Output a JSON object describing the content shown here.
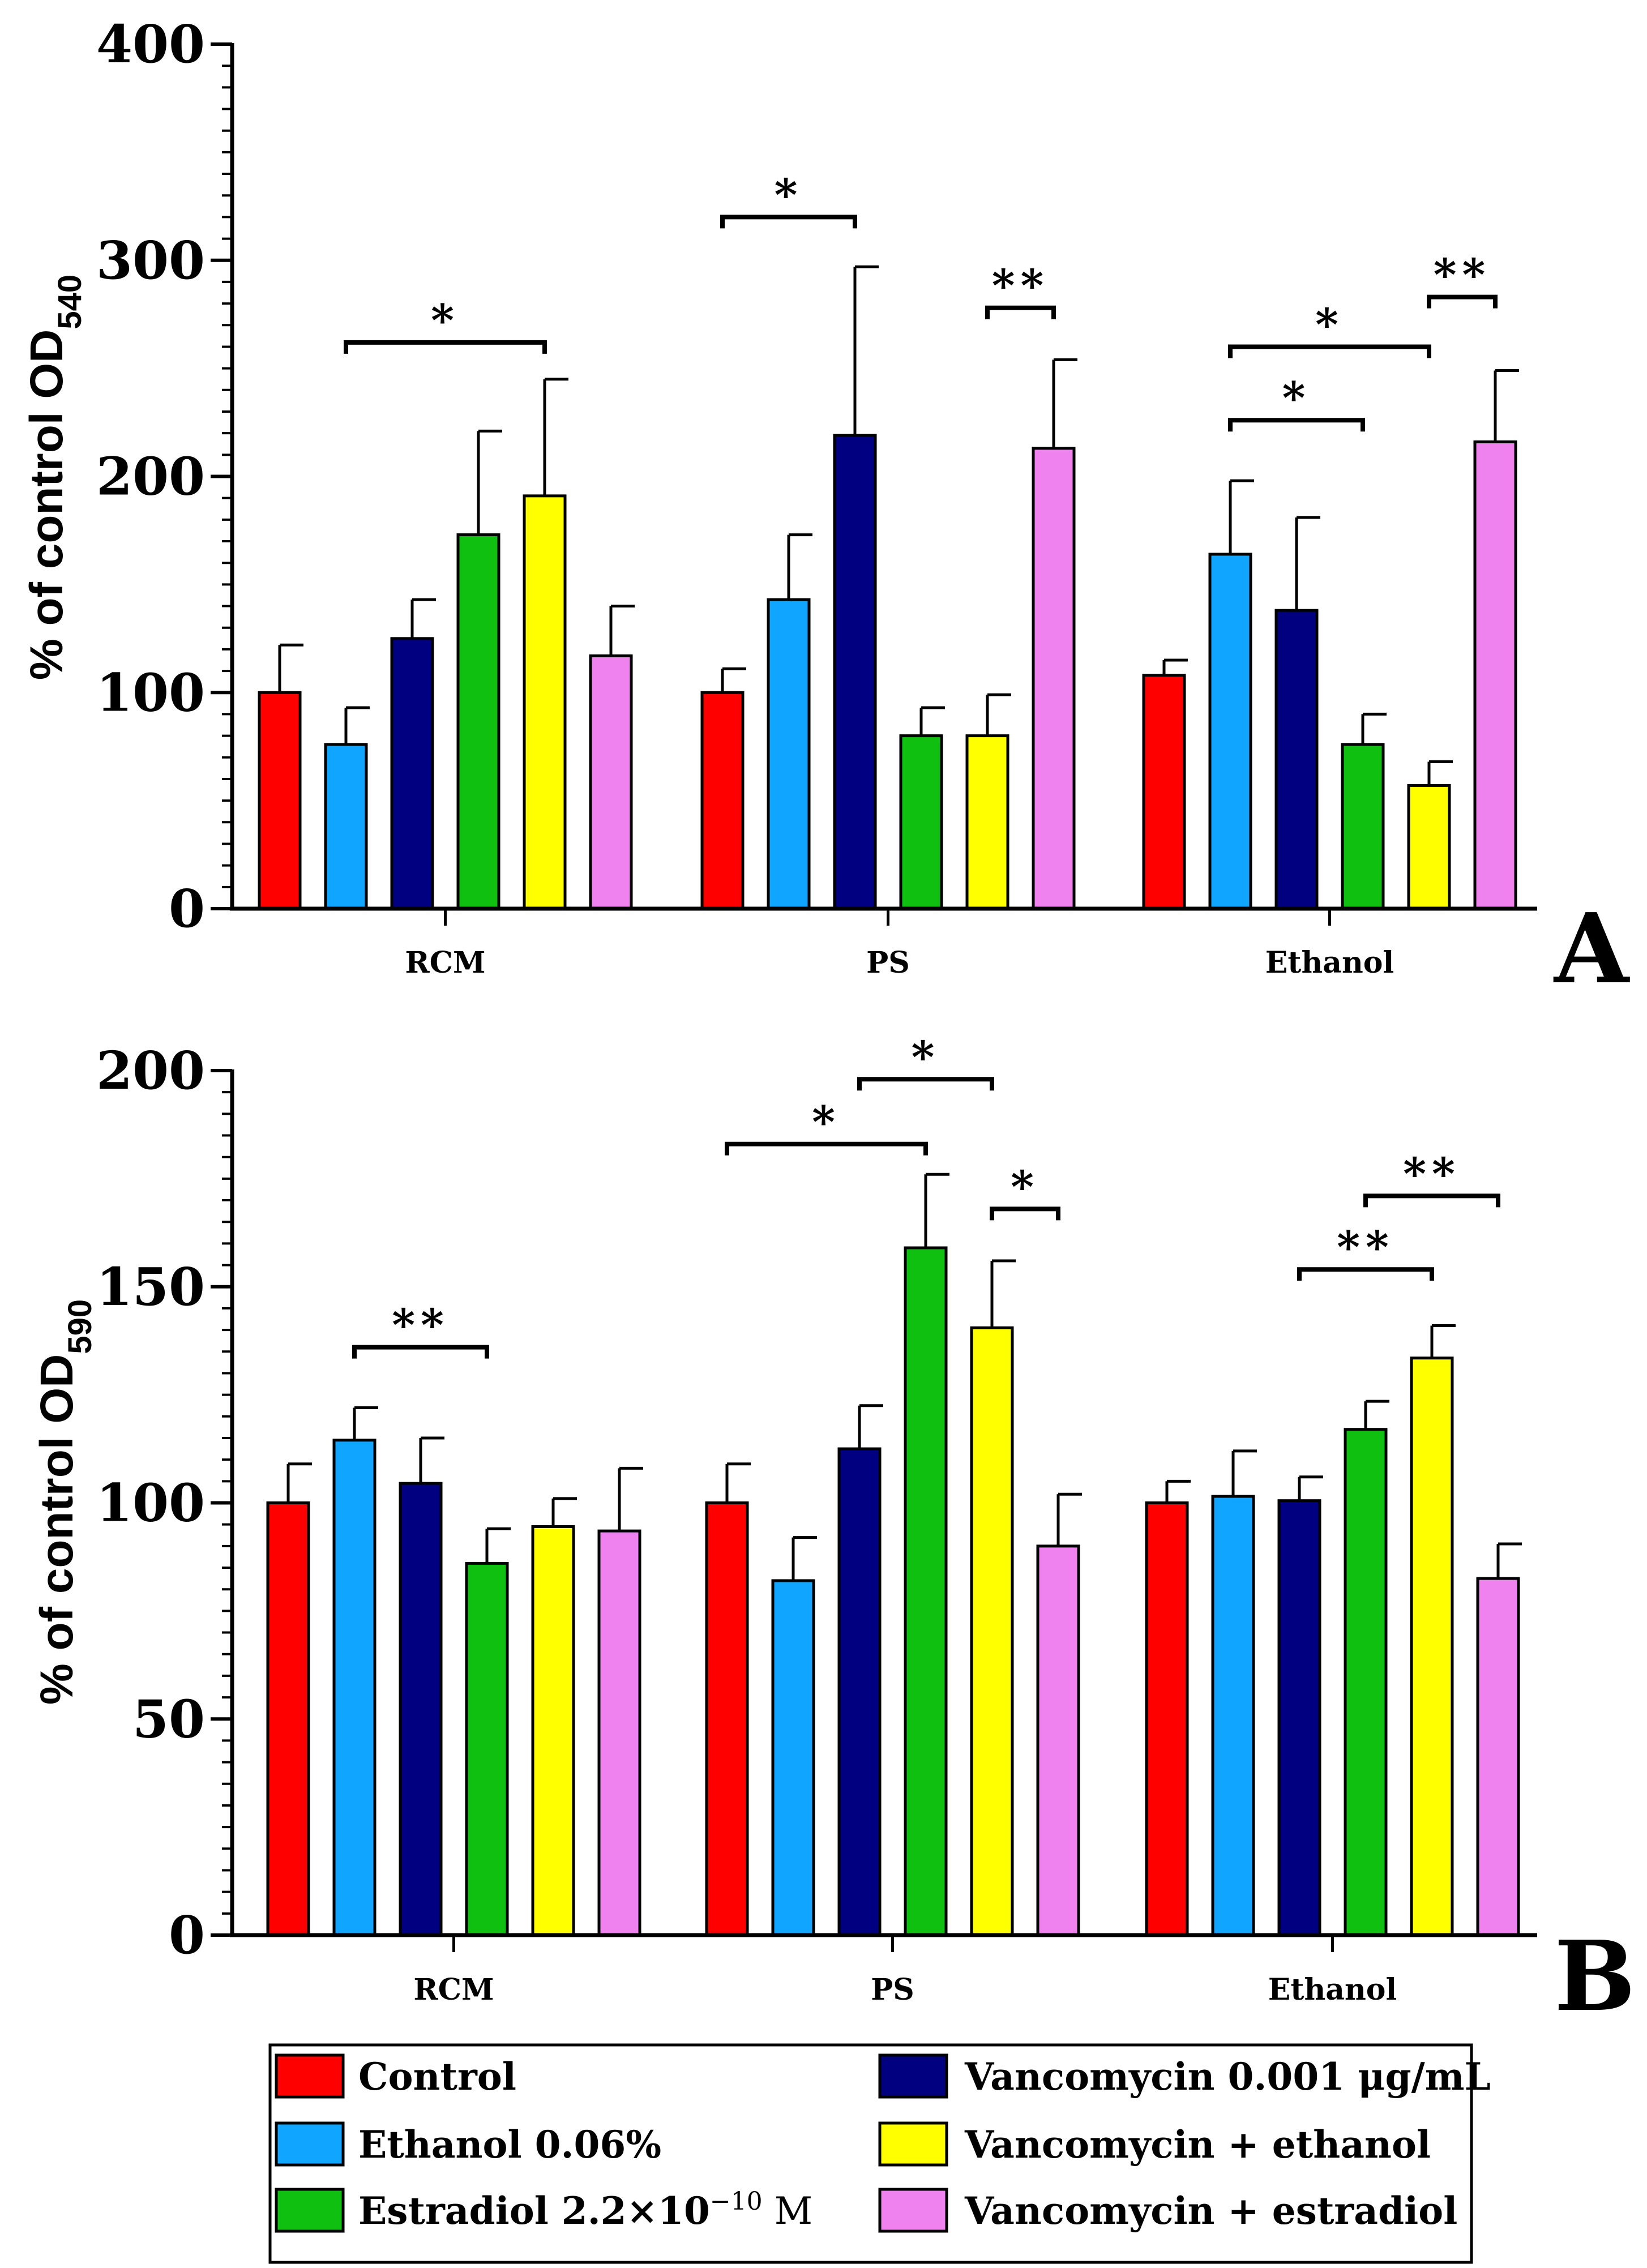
{
  "chart_data": [
    {
      "type": "bar",
      "panel_label": "A",
      "ylabel": {
        "main": "% of control OD",
        "sub": "540"
      },
      "ylim": [
        0,
        400
      ],
      "yticks": [
        0,
        100,
        200,
        300,
        400
      ],
      "categories": [
        "RCM",
        "PS",
        "Ethanol"
      ],
      "series": [
        {
          "name": "Control",
          "values": [
            100,
            100,
            108
          ],
          "errors": [
            22,
            11,
            7
          ],
          "color": "#ff0000"
        },
        {
          "name": "Ethanol 0.06%",
          "values": [
            76,
            143,
            164
          ],
          "errors": [
            17,
            30,
            34
          ],
          "color": "#10a5ff"
        },
        {
          "name": "Vancomycin 0.001 μg/mL",
          "values": [
            125,
            219,
            138
          ],
          "errors": [
            18,
            78,
            43
          ],
          "color": "#000080"
        },
        {
          "name": "Estradiol 2.2×10−10 M",
          "values": [
            173,
            80,
            76
          ],
          "errors": [
            48,
            13,
            14
          ],
          "color": "#10c010"
        },
        {
          "name": "Vancomycin + ethanol",
          "values": [
            191,
            80,
            57
          ],
          "errors": [
            54,
            19,
            11
          ],
          "color": "#ffff00"
        },
        {
          "name": "Vancomycin + estradiol",
          "values": [
            117,
            213,
            216
          ],
          "errors": [
            23,
            41,
            33
          ],
          "color": "#ef82ef"
        }
      ],
      "significance": [
        {
          "group": 0,
          "from": 1,
          "to": 4,
          "level": 262,
          "label": "*"
        },
        {
          "group": 1,
          "from": 0,
          "to": 2,
          "level": 320,
          "label": "*"
        },
        {
          "group": 1,
          "from": 4,
          "to": 5,
          "level": 278,
          "label": "**"
        },
        {
          "group": 2,
          "from": 1,
          "to": 4,
          "level": 260,
          "label": "*"
        },
        {
          "group": 2,
          "from": 1,
          "to": 3,
          "level": 226,
          "label": "*"
        },
        {
          "group": 2,
          "from": 4,
          "to": 5,
          "level": 283,
          "label": "**"
        }
      ]
    },
    {
      "type": "bar",
      "panel_label": "B",
      "ylabel": {
        "main": "% of control OD",
        "sub": "590"
      },
      "ylim": [
        0,
        200
      ],
      "yticks": [
        0,
        50,
        100,
        150,
        200
      ],
      "categories": [
        "RCM",
        "PS",
        "Ethanol"
      ],
      "series": [
        {
          "name": "Control",
          "values": [
            100,
            100,
            100
          ],
          "errors": [
            9,
            9,
            5
          ],
          "color": "#ff0000"
        },
        {
          "name": "Ethanol 0.06%",
          "values": [
            114.5,
            82,
            101.5
          ],
          "errors": [
            7.5,
            10,
            10.5
          ],
          "color": "#10a5ff"
        },
        {
          "name": "Vancomycin 0.001 μg/mL",
          "values": [
            104.5,
            112.5,
            100.5
          ],
          "errors": [
            10.5,
            10,
            5.5
          ],
          "color": "#000080"
        },
        {
          "name": "Estradiol 2.2×10−10 M",
          "values": [
            86,
            159,
            117
          ],
          "errors": [
            8,
            17,
            6.5
          ],
          "color": "#10c010"
        },
        {
          "name": "Vancomycin + ethanol",
          "values": [
            94.5,
            140.5,
            133.5
          ],
          "errors": [
            6.5,
            15.5,
            7.5
          ],
          "color": "#ffff00"
        },
        {
          "name": "Vancomycin + estradiol",
          "values": [
            93.5,
            90,
            82.5
          ],
          "errors": [
            14.5,
            12,
            8
          ],
          "color": "#ef82ef"
        }
      ],
      "significance": [
        {
          "group": 0,
          "from": 1,
          "to": 3,
          "level": 136,
          "label": "**"
        },
        {
          "group": 1,
          "from": 0,
          "to": 3,
          "level": 183,
          "label": "*"
        },
        {
          "group": 1,
          "from": 2,
          "to": 4,
          "level": 198,
          "label": "*"
        },
        {
          "group": 1,
          "from": 4,
          "to": 5,
          "level": 168,
          "label": "*"
        },
        {
          "group": 2,
          "from": 2,
          "to": 4,
          "level": 154,
          "label": "**"
        },
        {
          "group": 2,
          "from": 3,
          "to": 5,
          "level": 171,
          "label": "**"
        }
      ]
    }
  ],
  "legend": {
    "placement": "bottom",
    "items": [
      {
        "label": "Control",
        "color": "#ff0000"
      },
      {
        "label": "Ethanol 0.06%",
        "color": "#10a5ff"
      },
      {
        "label": "Estradiol 2.2×10",
        "sup": "−10",
        "suffix": " M",
        "color": "#10c010"
      },
      {
        "label": "Vancomycin 0.001 μg/mL",
        "color": "#000080"
      },
      {
        "label": "Vancomycin + ethanol",
        "color": "#ffff00"
      },
      {
        "label": "Vancomycin + estradiol",
        "color": "#ef82ef"
      }
    ]
  }
}
